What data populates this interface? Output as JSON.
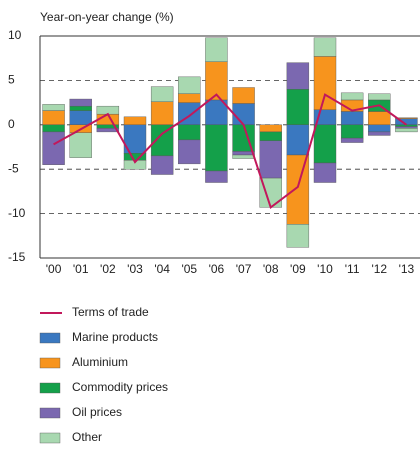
{
  "chart_data": {
    "type": "bar",
    "y_label": "Year-on-year change (%)",
    "categories": [
      "'00",
      "'01",
      "'02",
      "'03",
      "'04",
      "'05",
      "'06",
      "'07",
      "'08",
      "'09",
      "'10",
      "'11",
      "'12",
      "'13"
    ],
    "series": [
      {
        "name": "Terms of trade",
        "type": "line",
        "color": "#c2185b",
        "values": [
          -2.2,
          -0.5,
          1.2,
          -4.2,
          -1,
          1,
          3.4,
          0,
          -9.3,
          -7,
          3.4,
          1.6,
          2.2,
          0
        ]
      },
      {
        "name": "Marine products",
        "color": "#3a78c0",
        "values": [
          0,
          1.6,
          0,
          -3.2,
          0,
          2.5,
          2.8,
          2.4,
          0,
          -3.4,
          1.7,
          1.5,
          -0.8,
          0.7
        ]
      },
      {
        "name": "Aluminium",
        "color": "#f7941d",
        "values": [
          1.6,
          -0.9,
          1.2,
          0.9,
          2.6,
          1,
          4.3,
          1.8,
          -0.8,
          -7.8,
          6,
          1.3,
          1.5,
          0.1
        ]
      },
      {
        "name": "Commodity prices",
        "color": "#14a04a",
        "values": [
          -0.8,
          0.5,
          -0.4,
          -0.8,
          -3.5,
          -1.7,
          -5.2,
          -3,
          -1,
          4,
          -4.3,
          -1.5,
          1.3,
          -0.2
        ]
      },
      {
        "name": "Oil prices",
        "color": "#7b68b0",
        "values": [
          -3.7,
          0.8,
          -0.4,
          0,
          -2.1,
          -2.7,
          -1.3,
          -0.4,
          -4.2,
          3,
          -2.2,
          -0.5,
          -0.4,
          -0.2
        ]
      },
      {
        "name": "Other",
        "color": "#a8d8b0",
        "values": [
          0.7,
          -2.8,
          0.9,
          -1,
          1.7,
          1.9,
          2.7,
          -0.4,
          -3.3,
          -2.6,
          2.1,
          0.8,
          0.7,
          -0.4
        ]
      }
    ],
    "ylim": [
      -15,
      10
    ],
    "yticks": [
      10,
      5,
      0,
      -5,
      -10,
      -15
    ],
    "grid": true
  }
}
